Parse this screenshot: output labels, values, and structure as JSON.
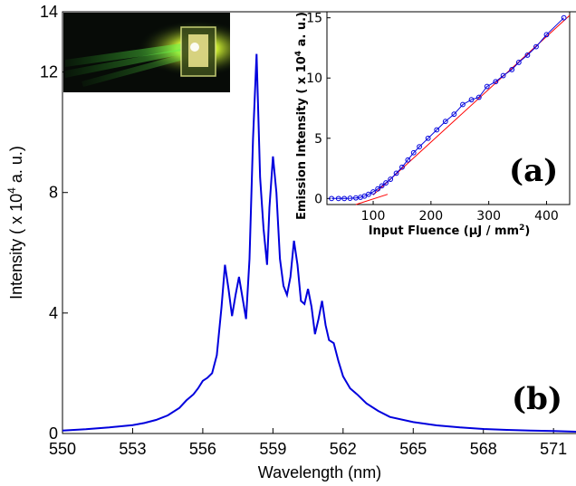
{
  "chart_data": [
    {
      "type": "line",
      "panel_label": "(b)",
      "xlabel": "Wavelength (nm)",
      "ylabel_parts": {
        "before": "Intensity ( x 10",
        "superscript": "4",
        "after": " a. u.)"
      },
      "xlim": [
        550,
        572
      ],
      "ylim": [
        0,
        14
      ],
      "x_ticks": [
        550,
        553,
        556,
        559,
        562,
        565,
        568,
        571
      ],
      "y_ticks": [
        0,
        4,
        8,
        12,
        14
      ],
      "grid": false,
      "line_color": "#0000dd",
      "series": [
        {
          "x": [
            550,
            551,
            552,
            553,
            553.5,
            554,
            554.5,
            555,
            555.3,
            555.6,
            555.8,
            556.0,
            556.2,
            556.4,
            556.6,
            556.8,
            556.95,
            557.1,
            557.25,
            557.4,
            557.55,
            557.7,
            557.85,
            558.0,
            558.15,
            558.3,
            558.45,
            558.6,
            558.75,
            558.85,
            559.0,
            559.15,
            559.3,
            559.45,
            559.6,
            559.75,
            559.9,
            560.05,
            560.2,
            560.35,
            560.5,
            560.65,
            560.8,
            560.95,
            561.1,
            561.25,
            561.4,
            561.6,
            561.8,
            562.0,
            562.3,
            562.6,
            563.0,
            563.5,
            564,
            565,
            566,
            567,
            568,
            569,
            570,
            571,
            572
          ],
          "y": [
            0.1,
            0.14,
            0.2,
            0.28,
            0.35,
            0.45,
            0.6,
            0.85,
            1.1,
            1.3,
            1.5,
            1.75,
            1.85,
            2.0,
            2.6,
            4.2,
            5.6,
            4.8,
            3.9,
            4.6,
            5.2,
            4.5,
            3.8,
            5.8,
            9.8,
            12.6,
            8.5,
            6.8,
            5.6,
            7.5,
            9.2,
            8.0,
            5.8,
            4.9,
            4.6,
            5.2,
            6.4,
            5.6,
            4.4,
            4.3,
            4.8,
            4.2,
            3.3,
            3.8,
            4.4,
            3.6,
            3.1,
            3.0,
            2.4,
            1.9,
            1.5,
            1.3,
            1.0,
            0.75,
            0.55,
            0.38,
            0.27,
            0.2,
            0.15,
            0.12,
            0.1,
            0.08,
            0.06
          ]
        }
      ]
    },
    {
      "type": "line",
      "panel_label": "(a)",
      "xlabel_parts": {
        "before": "Input Fluence (",
        "mu": "μ",
        "middle": "J / mm",
        "superscript": "2",
        "after": ")"
      },
      "ylabel_parts": {
        "before": "Emission Intensity ( x 10",
        "superscript": "4",
        "after": " a. u.)"
      },
      "xlim": [
        20,
        440
      ],
      "ylim": [
        -0.5,
        15.5
      ],
      "x_ticks": [
        100,
        200,
        300,
        400
      ],
      "y_ticks": [
        0,
        5,
        10,
        15
      ],
      "grid": false,
      "series": [
        {
          "marker": "circle",
          "color": "#0000dd",
          "x": [
            28,
            40,
            50,
            60,
            70,
            78,
            85,
            92,
            100,
            108,
            115,
            122,
            130,
            140,
            150,
            160,
            170,
            180,
            195,
            210,
            225,
            240,
            255,
            270,
            283,
            297,
            312,
            325,
            340,
            352,
            367,
            382,
            400,
            430
          ],
          "y": [
            0,
            0,
            0,
            0.02,
            0.05,
            0.1,
            0.2,
            0.35,
            0.55,
            0.8,
            1.05,
            1.3,
            1.6,
            2.1,
            2.6,
            3.2,
            3.8,
            4.3,
            5.0,
            5.7,
            6.4,
            7.0,
            7.8,
            8.2,
            8.4,
            9.3,
            9.7,
            10.2,
            10.7,
            11.3,
            11.9,
            12.6,
            13.6,
            15.0
          ]
        },
        {
          "marker": "none",
          "color": "#ff0000",
          "x": [
            100,
            440
          ],
          "y": [
            0.3,
            15.2
          ]
        },
        {
          "marker": "none",
          "color": "#ff0000",
          "x": [
            70,
            125
          ],
          "y": [
            -0.5,
            0.35
          ]
        }
      ]
    }
  ],
  "inset_photo": {
    "description_icon": "laser-emission-photo"
  }
}
